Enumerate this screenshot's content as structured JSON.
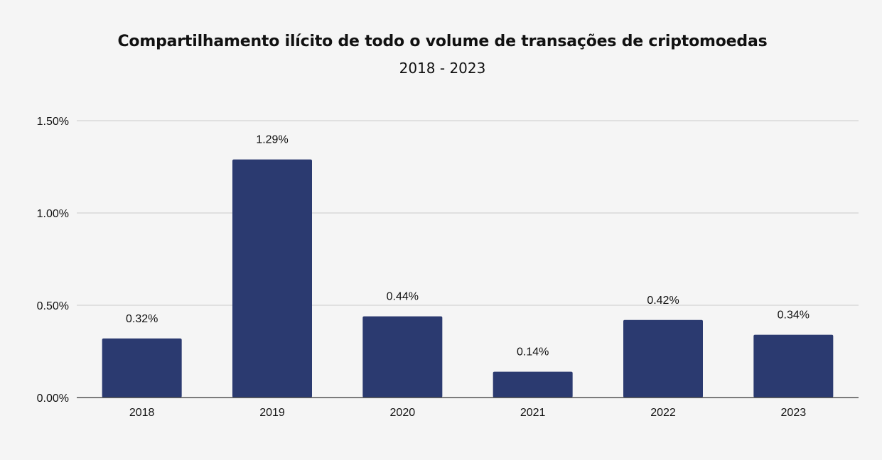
{
  "chart_data": {
    "type": "bar",
    "title": "Compartilhamento ilícito de todo o volume de transações de criptomoedas",
    "subtitle": "2018 - 2023",
    "xlabel": "",
    "ylabel": "",
    "categories": [
      "2018",
      "2019",
      "2020",
      "2021",
      "2022",
      "2023"
    ],
    "values": [
      0.32,
      1.29,
      0.44,
      0.14,
      0.42,
      0.34
    ],
    "value_labels": [
      "0.32%",
      "1.29%",
      "0.44%",
      "0.14%",
      "0.42%",
      "0.34%"
    ],
    "y_ticks": [
      0,
      0.5,
      1.0,
      1.5
    ],
    "y_tick_labels": [
      "0.00%",
      "0.50%",
      "1.00%",
      "1.50%"
    ],
    "ylim": [
      0,
      1.5
    ],
    "grid": true,
    "legend": "none",
    "colors": {
      "bar": "#2b3a70",
      "grid": "#cccccc",
      "axis": "#333333",
      "background": "#f5f5f5"
    }
  }
}
